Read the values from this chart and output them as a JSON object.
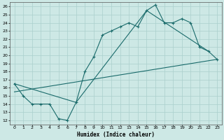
{
  "title": "",
  "xlabel": "Humidex (Indice chaleur)",
  "xlim": [
    -0.5,
    23.5
  ],
  "ylim": [
    11.5,
    26.5
  ],
  "xticks": [
    0,
    1,
    2,
    3,
    4,
    5,
    6,
    7,
    8,
    9,
    10,
    11,
    12,
    13,
    14,
    15,
    16,
    17,
    18,
    19,
    20,
    21,
    22,
    23
  ],
  "yticks": [
    12,
    13,
    14,
    15,
    16,
    17,
    18,
    19,
    20,
    21,
    22,
    23,
    24,
    25,
    26
  ],
  "background_color": "#cde8e5",
  "grid_color": "#aacfcc",
  "line_color": "#1a6b6b",
  "line1_x": [
    0,
    1,
    2,
    3,
    4,
    5,
    6,
    7,
    8,
    9,
    10,
    11,
    12,
    13,
    14,
    15,
    16,
    17,
    18,
    19,
    20,
    21,
    22,
    23
  ],
  "line1_y": [
    16.5,
    15.0,
    14.0,
    14.0,
    14.0,
    12.2,
    12.0,
    14.2,
    18.0,
    19.8,
    22.5,
    23.0,
    23.5,
    24.0,
    23.5,
    25.5,
    26.2,
    24.0,
    24.0,
    24.5,
    24.0,
    21.0,
    20.5,
    19.5
  ],
  "line2_x": [
    0,
    7,
    15,
    22
  ],
  "line2_y": [
    16.5,
    14.2,
    25.5,
    20.5
  ],
  "line3_x": [
    0,
    23
  ],
  "line3_y": [
    15.5,
    19.5
  ]
}
